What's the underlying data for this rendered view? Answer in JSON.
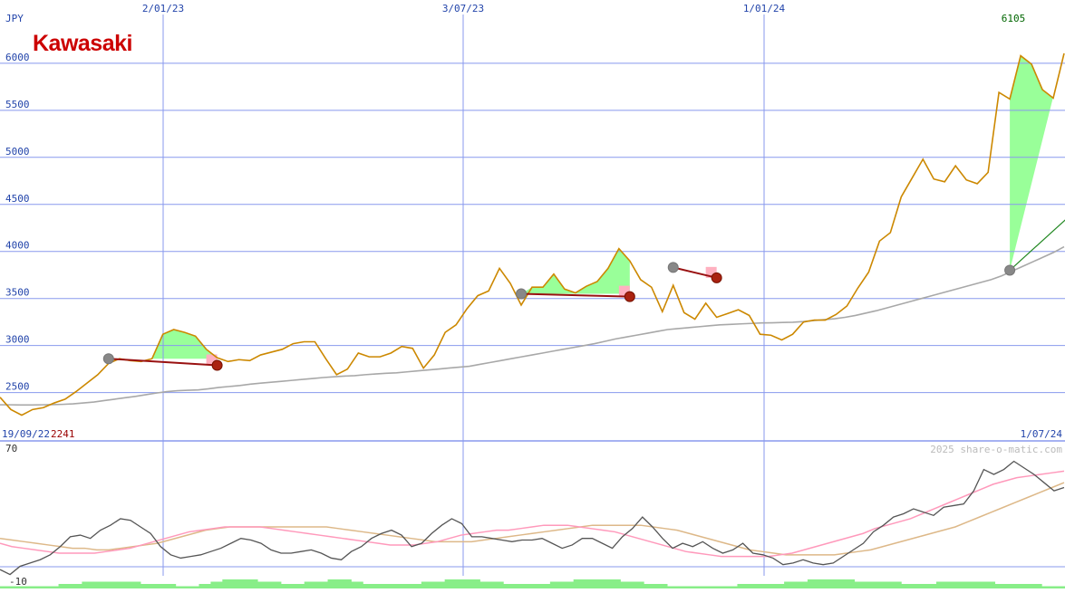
{
  "chart_data": [
    {
      "type": "line",
      "logo": "Kawasaki",
      "currency_label": "JPY",
      "y_ticks": [
        2500,
        3000,
        3500,
        4000,
        4500,
        5000,
        5500,
        6000
      ],
      "ylim": [
        2150,
        6480
      ],
      "x_ticks": [
        "2/01/23",
        "3/07/23",
        "1/01/24"
      ],
      "start_date": "19/09/22",
      "end_date": "1/07/24",
      "low_label": "2241",
      "last_label": "6105",
      "watermark": "2025 share-o-matic.com",
      "grid": true,
      "colors": {
        "price": "#cc8800",
        "moving_average": "#a8a8a8",
        "gain_fill": "#99ff99",
        "loss_fill": "#ffb0c0",
        "trend_up": "#228822",
        "trend_down": "#991111",
        "grid": "#8899ee",
        "axis_text": "#2244aa",
        "low_text": "#990000",
        "last_text": "#006600",
        "logo": "#cc0000"
      },
      "series": [
        {
          "values": [
            2450,
            2320,
            2260,
            2320,
            2340,
            2390,
            2430,
            2510,
            2600,
            2690,
            2810,
            2860,
            2840,
            2830,
            2860,
            3120,
            3170,
            3140,
            3100,
            2960,
            2870,
            2830,
            2850,
            2840,
            2900,
            2930,
            2960,
            3020,
            3040,
            3040,
            2860,
            2690,
            2750,
            2920,
            2880,
            2880,
            2920,
            2990,
            2970,
            2760,
            2900,
            3140,
            3220,
            3390,
            3530,
            3580,
            3820,
            3660,
            3430,
            3620,
            3620,
            3760,
            3600,
            3560,
            3630,
            3680,
            3820,
            4030,
            3900,
            3700,
            3620,
            3360,
            3640,
            3350,
            3280,
            3450,
            3300,
            3340,
            3380,
            3320,
            3120,
            3110,
            3060,
            3120,
            3250,
            3270,
            3270,
            3330,
            3420,
            3610,
            3780,
            4110,
            4200,
            4580,
            4780,
            4980,
            4770,
            4740,
            4910,
            4760,
            4720,
            4840,
            5690,
            5620,
            6080,
            5990,
            5720,
            5630,
            6105
          ]
        },
        {
          "values": [
            2370,
            2370,
            2368,
            2368,
            2370,
            2372,
            2375,
            2380,
            2390,
            2400,
            2415,
            2430,
            2445,
            2460,
            2478,
            2495,
            2510,
            2520,
            2525,
            2528,
            2540,
            2555,
            2565,
            2575,
            2590,
            2600,
            2610,
            2620,
            2630,
            2640,
            2650,
            2660,
            2668,
            2675,
            2680,
            2690,
            2698,
            2705,
            2710,
            2720,
            2730,
            2740,
            2750,
            2760,
            2770,
            2780,
            2800,
            2820,
            2840,
            2860,
            2880,
            2900,
            2920,
            2940,
            2960,
            2980,
            3000,
            3020,
            3045,
            3070,
            3090,
            3110,
            3130,
            3150,
            3170,
            3180,
            3190,
            3200,
            3210,
            3220,
            3225,
            3230,
            3235,
            3240,
            3242,
            3245,
            3248,
            3255,
            3265,
            3275,
            3285,
            3300,
            3320,
            3345,
            3370,
            3400,
            3430,
            3460,
            3490,
            3520,
            3550,
            3580,
            3610,
            3640,
            3670,
            3700,
            3740,
            3790,
            3840,
            3890,
            3940,
            3990,
            4050
          ]
        }
      ],
      "trend_segments": [
        {
          "from": [
            10,
            2860
          ],
          "to": [
            20,
            2790
          ],
          "direction": "down"
        },
        {
          "from": [
            48,
            3550
          ],
          "to": [
            58,
            3520
          ],
          "direction": "down"
        },
        {
          "from": [
            62,
            3830
          ],
          "to": [
            66,
            3720
          ],
          "direction": "down"
        },
        {
          "from": [
            93,
            3800
          ],
          "to": [
            115,
            6105
          ],
          "direction": "up"
        }
      ]
    },
    {
      "type": "line",
      "ylim": [
        -10,
        70
      ],
      "y_ticks": [
        70,
        -10
      ],
      "grid": true,
      "colors": {
        "momentum": "#555555",
        "fast_avg": "#ff99bb",
        "slow_avg": "#ddb888",
        "volume": "#88ee88"
      },
      "series": [
        {
          "values": [
            -4,
            -7,
            -2,
            0,
            2,
            5,
            10,
            16,
            17,
            15,
            20,
            23,
            27,
            26,
            22,
            18,
            10,
            5,
            3,
            4,
            5,
            7,
            9,
            12,
            15,
            14,
            12,
            8,
            6,
            6,
            7,
            8,
            6,
            3,
            2,
            7,
            10,
            15,
            18,
            20,
            17,
            10,
            12,
            18,
            23,
            27,
            24,
            16,
            16,
            15,
            14,
            13,
            14,
            14,
            15,
            12,
            9,
            11,
            15,
            15,
            12,
            9,
            16,
            21,
            28,
            22,
            15,
            9,
            12,
            10,
            13,
            9,
            6,
            8,
            12,
            6,
            5,
            3,
            -1,
            0,
            2,
            0,
            -1,
            0,
            4,
            8,
            12,
            19,
            23,
            28,
            30,
            33,
            31,
            29,
            34,
            35,
            36,
            44,
            57,
            54,
            57,
            62,
            58,
            54,
            49,
            44,
            46
          ]
        },
        {
          "values": [
            12,
            10,
            9,
            8,
            7,
            6,
            6,
            6,
            6,
            7,
            8,
            9,
            11,
            13,
            15,
            17,
            19,
            20,
            21,
            22,
            22,
            22,
            22,
            21,
            20,
            19,
            18,
            17,
            16,
            15,
            14,
            13,
            12,
            11,
            11,
            11,
            12,
            13,
            15,
            17,
            18,
            19,
            20,
            20,
            21,
            22,
            23,
            23,
            23,
            22,
            21,
            20,
            19,
            17,
            15,
            13,
            11,
            9,
            7,
            6,
            5,
            4,
            4,
            4,
            4,
            4,
            5,
            6,
            8,
            10,
            12,
            14,
            16,
            18,
            21,
            23,
            25,
            27,
            30,
            33,
            36,
            39,
            42,
            45,
            48,
            50,
            52,
            53,
            54,
            55,
            56
          ]
        },
        {
          "values": [
            15,
            14,
            13,
            12,
            11,
            10,
            9,
            9,
            8,
            8,
            9,
            10,
            11,
            12,
            14,
            16,
            18,
            20,
            21,
            22,
            22,
            22,
            22,
            22,
            22,
            22,
            22,
            22,
            21,
            20,
            19,
            18,
            17,
            16,
            15,
            14,
            13,
            13,
            13,
            13,
            14,
            15,
            16,
            17,
            18,
            19,
            20,
            21,
            22,
            23,
            23,
            23,
            23,
            23,
            22,
            21,
            20,
            18,
            16,
            14,
            12,
            10,
            8,
            7,
            6,
            5,
            5,
            5,
            5,
            5,
            6,
            7,
            8,
            10,
            12,
            14,
            16,
            18,
            20,
            22,
            25,
            28,
            31,
            34,
            37,
            40,
            43,
            46,
            49
          ]
        },
        {
          "values": [
            1,
            1,
            1,
            1,
            1,
            2,
            2,
            3,
            3,
            3,
            3,
            3,
            2,
            2,
            2,
            1,
            1,
            2,
            3,
            4,
            4,
            4,
            3,
            3,
            2,
            2,
            3,
            3,
            4,
            4,
            3,
            2,
            2,
            2,
            2,
            2,
            3,
            3,
            4,
            4,
            4,
            3,
            3,
            2,
            2,
            2,
            2,
            3,
            3,
            4,
            4,
            4,
            4,
            3,
            3,
            2,
            2,
            1,
            1,
            1,
            1,
            1,
            1,
            2,
            2,
            2,
            2,
            3,
            3,
            4,
            4,
            4,
            4,
            3,
            3,
            3,
            3,
            2,
            2,
            2,
            3,
            3,
            3,
            3,
            3,
            2,
            2,
            2,
            2,
            1,
            1
          ]
        }
      ]
    }
  ]
}
